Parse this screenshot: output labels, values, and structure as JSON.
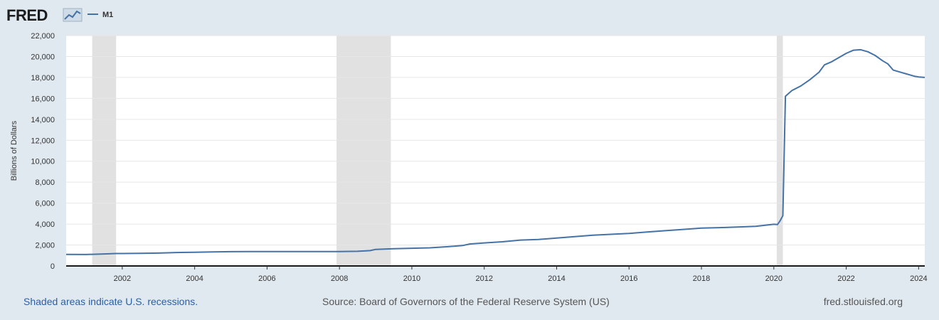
{
  "brand": {
    "name": "FRED",
    "logo_icon": "chart-line-icon"
  },
  "legend": {
    "series_label": "M1"
  },
  "colors": {
    "line": "#4572a7",
    "recession": "#e1e1e1",
    "grid": "#e6e6e6",
    "background": "#e1e9f0"
  },
  "chart_data": {
    "type": "line",
    "title": "M1",
    "xlabel": "",
    "ylabel": "Billions of Dollars",
    "ylim": [
      0,
      22000
    ],
    "xlim": [
      2000.45,
      2024.17
    ],
    "y_ticks": [
      "0",
      "2,000",
      "4,000",
      "6,000",
      "8,000",
      "10,000",
      "12,000",
      "14,000",
      "16,000",
      "18,000",
      "20,000",
      "22,000"
    ],
    "x_ticks": [
      "2002",
      "2004",
      "2006",
      "2008",
      "2010",
      "2012",
      "2014",
      "2016",
      "2018",
      "2020",
      "2022",
      "2024"
    ],
    "recessions": [
      {
        "start": 2001.17,
        "end": 2001.83
      },
      {
        "start": 2007.92,
        "end": 2009.42
      },
      {
        "start": 2020.08,
        "end": 2020.25
      }
    ],
    "series": [
      {
        "name": "M1",
        "points": [
          [
            2000.45,
            1100
          ],
          [
            2001.0,
            1090
          ],
          [
            2001.5,
            1150
          ],
          [
            2001.83,
            1190
          ],
          [
            2002.0,
            1190
          ],
          [
            2002.5,
            1200
          ],
          [
            2003.0,
            1230
          ],
          [
            2003.5,
            1280
          ],
          [
            2004.0,
            1310
          ],
          [
            2004.5,
            1340
          ],
          [
            2005.0,
            1365
          ],
          [
            2005.5,
            1370
          ],
          [
            2006.0,
            1380
          ],
          [
            2006.5,
            1380
          ],
          [
            2007.0,
            1375
          ],
          [
            2007.5,
            1370
          ],
          [
            2008.0,
            1370
          ],
          [
            2008.5,
            1400
          ],
          [
            2008.85,
            1470
          ],
          [
            2009.0,
            1580
          ],
          [
            2009.5,
            1650
          ],
          [
            2010.0,
            1690
          ],
          [
            2010.5,
            1730
          ],
          [
            2011.0,
            1840
          ],
          [
            2011.4,
            1950
          ],
          [
            2011.6,
            2100
          ],
          [
            2012.0,
            2200
          ],
          [
            2012.5,
            2310
          ],
          [
            2013.0,
            2470
          ],
          [
            2013.5,
            2530
          ],
          [
            2014.0,
            2660
          ],
          [
            2014.5,
            2800
          ],
          [
            2015.0,
            2930
          ],
          [
            2015.5,
            3020
          ],
          [
            2016.0,
            3100
          ],
          [
            2016.5,
            3240
          ],
          [
            2017.0,
            3370
          ],
          [
            2017.5,
            3490
          ],
          [
            2018.0,
            3620
          ],
          [
            2018.5,
            3660
          ],
          [
            2019.0,
            3720
          ],
          [
            2019.5,
            3790
          ],
          [
            2020.0,
            3980
          ],
          [
            2020.1,
            3950
          ],
          [
            2020.17,
            4300
          ],
          [
            2020.25,
            4800
          ],
          [
            2020.32,
            16200
          ],
          [
            2020.5,
            16750
          ],
          [
            2020.75,
            17200
          ],
          [
            2021.0,
            17800
          ],
          [
            2021.25,
            18500
          ],
          [
            2021.4,
            19200
          ],
          [
            2021.6,
            19500
          ],
          [
            2021.8,
            19900
          ],
          [
            2022.0,
            20300
          ],
          [
            2022.2,
            20600
          ],
          [
            2022.4,
            20650
          ],
          [
            2022.6,
            20450
          ],
          [
            2022.8,
            20100
          ],
          [
            2023.0,
            19600
          ],
          [
            2023.15,
            19300
          ],
          [
            2023.3,
            18700
          ],
          [
            2023.6,
            18400
          ],
          [
            2023.9,
            18100
          ],
          [
            2024.0,
            18050
          ],
          [
            2024.17,
            18000
          ]
        ]
      }
    ]
  },
  "footer": {
    "note": "Shaded areas indicate U.S. recessions.",
    "source": "Source: Board of Governors of the Federal Reserve System (US)",
    "url": "fred.stlouisfed.org"
  }
}
